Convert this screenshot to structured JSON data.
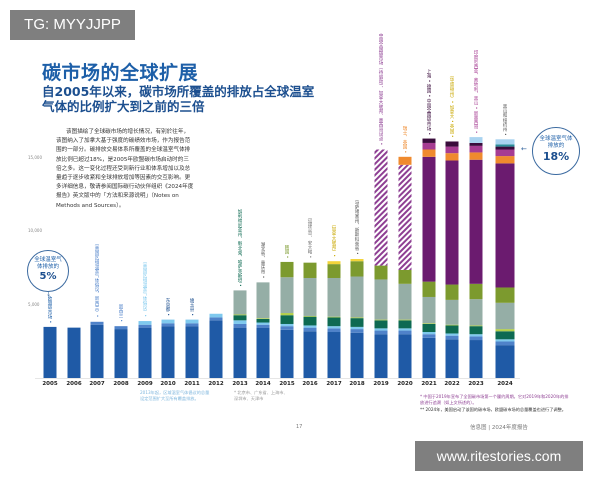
{
  "watermarks": {
    "top_left": "TG: MYYJJPP",
    "bottom_right": "www.ritestories.com"
  },
  "header": {
    "title": "碳市场的全球扩展",
    "subtitle": "自2005年以来，碳市场所覆盖的排放占全球温室气体的比例扩大到之前的三倍"
  },
  "description": "该图描绘了全球碳市场的增长情况，有别於往年，该图纳入了加拿大基于强度的碳绩效市场，作为报告范围的一部分。碳排放交易体系所覆盖的全球温室气体排放比例已超过18%，是2005年欧盟碳市场启动时的三倍之多。这一变化过程还受到新行业和体系增加以及总量趋于逐步收紧和全球排放增加等因素的交互影响。更多详细信息，敬请参阅国际碳行动伙伴组织《2024年度报告》英文版中的「方法和来源说明」（Notes on Methods and Sources）。",
  "callouts": {
    "start": {
      "label": "全球温室气体排放的",
      "value": "5%"
    },
    "end": {
      "label": "全球温室气体排放的",
      "value": "18%"
    }
  },
  "colors": {
    "title": "#1d5fa8",
    "series": [
      "#1f5aa6",
      "#4f82c9",
      "#7fc9ee",
      "#0e6a52",
      "#b3cf4a",
      "#95aea6",
      "#7c9a2e",
      "#f2d43a",
      "#8e3f93",
      "#6b1b6f",
      "#ef8a2e",
      "#a63c92",
      "#3a0c3c",
      "#2c8f9a",
      "#a9d3f0"
    ]
  },
  "chart_data": {
    "type": "bar",
    "stacked": true,
    "categories": [
      "2005",
      "2006",
      "2007",
      "2008",
      "2009",
      "2010",
      "2011",
      "2012",
      "2013",
      "2014",
      "2015",
      "2016",
      "2017",
      "2018",
      "2019",
      "2020",
      "2021",
      "2022",
      "2023",
      "2024"
    ],
    "ylim": [
      0,
      16500
    ],
    "yticks": [
      "5,000",
      "10,000",
      "15,000"
    ],
    "ytick_values": [
      5000,
      10000,
      15000
    ],
    "grid": false,
    "legend": "none",
    "series": [
      {
        "values": [
          3500,
          3450,
          3650,
          3350,
          3450,
          3550,
          3550,
          3950,
          3450,
          3450,
          3300,
          3200,
          3150,
          3100,
          3000,
          3000,
          2750,
          2650,
          2600,
          2250
        ]
      },
      {
        "values": [
          0,
          0,
          200,
          200,
          200,
          200,
          200,
          200,
          250,
          200,
          250,
          250,
          250,
          250,
          250,
          250,
          250,
          250,
          250,
          250
        ]
      },
      {
        "values": [
          0,
          0,
          0,
          0,
          250,
          250,
          250,
          250,
          250,
          150,
          150,
          150,
          150,
          150,
          150,
          150,
          150,
          150,
          150,
          150
        ]
      },
      {
        "values": [
          0,
          0,
          0,
          0,
          0,
          0,
          0,
          0,
          350,
          250,
          600,
          600,
          600,
          600,
          550,
          550,
          550,
          550,
          550,
          550
        ]
      },
      {
        "values": [
          0,
          0,
          0,
          0,
          0,
          0,
          0,
          0,
          50,
          50,
          150,
          50,
          50,
          50,
          50,
          50,
          50,
          50,
          50,
          150
        ]
      },
      {
        "values": [
          0,
          0,
          0,
          0,
          0,
          0,
          0,
          0,
          1650,
          2450,
          2450,
          2600,
          2650,
          2800,
          2750,
          2450,
          1800,
          1700,
          1800,
          1800
        ]
      },
      {
        "values": [
          0,
          0,
          0,
          0,
          0,
          0,
          0,
          0,
          0,
          0,
          1050,
          1050,
          950,
          1050,
          950,
          950,
          1050,
          1050,
          1050,
          1050
        ]
      },
      {
        "values": [
          0,
          0,
          0,
          0,
          0,
          0,
          0,
          0,
          0,
          0,
          0,
          0,
          200,
          150,
          0,
          0,
          0,
          0,
          0,
          0
        ]
      },
      {
        "values": [
          0,
          0,
          0,
          0,
          0,
          0,
          0,
          0,
          0,
          0,
          0,
          0,
          0,
          0,
          7950,
          7200,
          0,
          0,
          0,
          0
        ],
        "hatched": true
      },
      {
        "values": [
          0,
          0,
          0,
          0,
          0,
          0,
          0,
          0,
          0,
          0,
          0,
          0,
          0,
          0,
          0,
          0,
          8550,
          8500,
          8500,
          8500
        ]
      },
      {
        "values": [
          0,
          0,
          0,
          0,
          0,
          0,
          0,
          0,
          0,
          0,
          0,
          0,
          0,
          0,
          0,
          550,
          500,
          500,
          500,
          500
        ]
      },
      {
        "values": [
          0,
          0,
          0,
          0,
          0,
          0,
          0,
          0,
          0,
          0,
          0,
          0,
          0,
          0,
          0,
          0,
          450,
          450,
          450,
          450
        ]
      },
      {
        "values": [
          0,
          0,
          0,
          0,
          0,
          0,
          0,
          0,
          0,
          0,
          0,
          0,
          0,
          0,
          0,
          0,
          300,
          350,
          200,
          200
        ]
      },
      {
        "values": [
          0,
          0,
          0,
          0,
          0,
          0,
          0,
          0,
          0,
          0,
          0,
          0,
          0,
          0,
          0,
          0,
          0,
          0,
          0,
          150
        ]
      },
      {
        "values": [
          0,
          0,
          0,
          0,
          0,
          0,
          0,
          0,
          0,
          0,
          0,
          0,
          0,
          0,
          0,
          0,
          0,
          0,
          400,
          350
        ]
      }
    ],
    "annotations": [
      {
        "year": "2005",
        "text": "欧盟碳市场 •",
        "color": "#1d5fa8"
      },
      {
        "year": "2007",
        "text": "（美国区域温室气体倡议，新西兰）•",
        "color": "#4f82c9"
      },
      {
        "year": "2008",
        "text": "新西兰 •",
        "color": "#4f82c9"
      },
      {
        "year": "2009",
        "text": "（美国区域温室气体倡议）•",
        "color": "#7fc9ee"
      },
      {
        "year": "2010",
        "text": "东京都 •",
        "color": "#1c4f8f"
      },
      {
        "year": "2011",
        "text": "埼玉县 •",
        "color": "#1c4f8f"
      },
      {
        "year": "2013",
        "text": "加利福尼亚州、魁北克、哈萨克斯坦 •",
        "color": "#0e6a52"
      },
      {
        "year": "2014",
        "text": "湖北省、重庆市 •",
        "color": "#555555"
      },
      {
        "year": "2015",
        "text": "韩国 •",
        "color": "#7c9a2e"
      },
      {
        "year": "2016",
        "text": "（福建省）、安大略 •",
        "color": "#777777"
      },
      {
        "year": "2017",
        "text": "（加拿大联邦）•",
        "color": "#c9a800"
      },
      {
        "year": "2018",
        "text": "马萨诸塞州、新斯科舍省 •",
        "color": "#555555"
      },
      {
        "year": "2019",
        "text": "中国全国碳市场（待启动）、加拿大联邦、墨西哥试点 •",
        "color": "#8e3f93"
      },
      {
        "year": "2020",
        "text": "瑞士、英国 •",
        "color": "#ef8a2e"
      },
      {
        "year": "2021",
        "text": "上海 • 德国 • 中国全国碳市场 •",
        "color": "#3a0c3c"
      },
      {
        "year": "2022",
        "text": "（华盛顿州）• 加拿大 • 英国 •",
        "color": "#c9a800"
      },
      {
        "year": "2023",
        "text": "印度尼西亚、奥地利、黑山 • 新墨西哥 •",
        "color": "#a63c92"
      },
      {
        "year": "2024",
        "text": "黑山和纽约州 •",
        "color": "#555555"
      }
    ]
  },
  "footnotes": {
    "left_a": "2013年起，区域温室气体倡议的总量设定范围扩大至所有覆盖排放。",
    "left_b": "* 北京市、广东省、上海市、深圳市、天津市",
    "right_a": "* 中国于2019年宣布了全国碳市场第一个履约周期。它对2019年和2020年的排放进行追溯（如上文所述的）。",
    "right_b": "** 2024年，美国启动了该国的碳市场，欧盟碳市场的总量覆盖也进行了调整。"
  },
  "footer": {
    "page_number": "17",
    "report": "信息图 | 2024年度报告"
  }
}
